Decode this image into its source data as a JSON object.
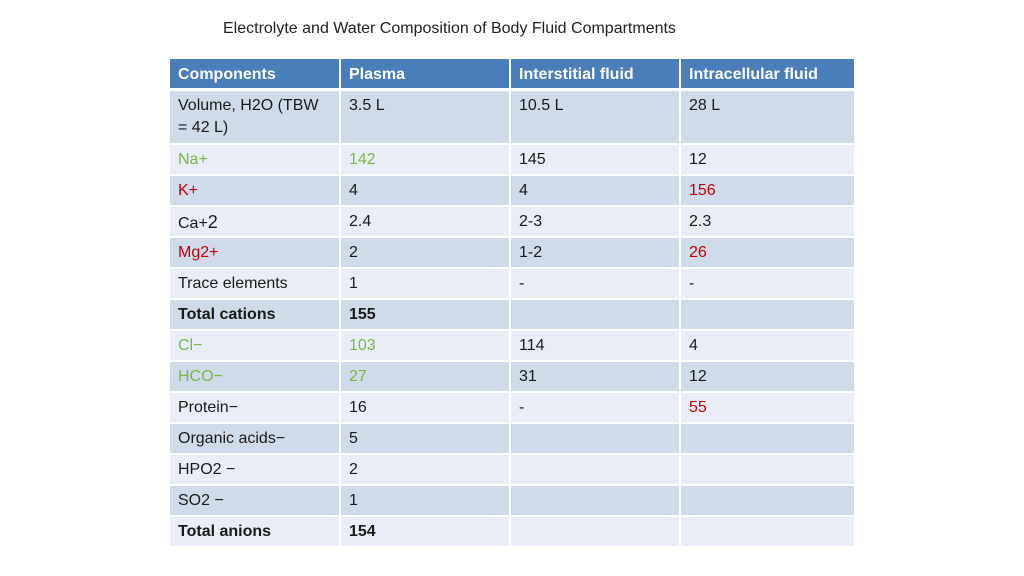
{
  "title": "Electrolyte and Water Composition of Body Fluid Compartments",
  "table": {
    "headers": [
      "Components",
      "Plasma",
      "Interstitial fluid",
      "Intracellular fluid"
    ],
    "rows": [
      {
        "cells": [
          "Volume, H2O (TBW = 42 L)",
          "3.5 L",
          "10.5 L",
          "28 L"
        ]
      },
      {
        "cells": [
          "Na+",
          "142",
          "145",
          "12"
        ]
      },
      {
        "cells": [
          "K+",
          "4",
          "4",
          "156"
        ]
      },
      {
        "cells": [
          "Ca+",
          "2.4",
          "2-3",
          "2.3"
        ],
        "superscript_like": "2"
      },
      {
        "cells": [
          "Mg2+",
          "2",
          "1-2",
          "26"
        ]
      },
      {
        "cells": [
          "Trace elements",
          "1",
          "-",
          "-"
        ]
      },
      {
        "cells": [
          "Total cations",
          "155",
          "",
          ""
        ]
      },
      {
        "cells": [
          "Cl−",
          "103",
          "114",
          "4"
        ]
      },
      {
        "cells": [
          "HCO−",
          "27",
          "31",
          "12"
        ]
      },
      {
        "cells": [
          "Protein−",
          "16",
          "-",
          "55"
        ]
      },
      {
        "cells": [
          "Organic acids−",
          "5",
          "",
          ""
        ]
      },
      {
        "cells": [
          "HPO2 −",
          "2",
          "",
          ""
        ]
      },
      {
        "cells": [
          "SO2 −",
          "1",
          "",
          ""
        ]
      },
      {
        "cells": [
          "Total anions",
          "154",
          "",
          ""
        ]
      }
    ]
  },
  "colors": {
    "header_bg": "#4a7ebb",
    "row_dark": "#d0dbea",
    "row_light": "#e9eef6",
    "green_text": "#7ab648",
    "red_text": "#c00000"
  }
}
